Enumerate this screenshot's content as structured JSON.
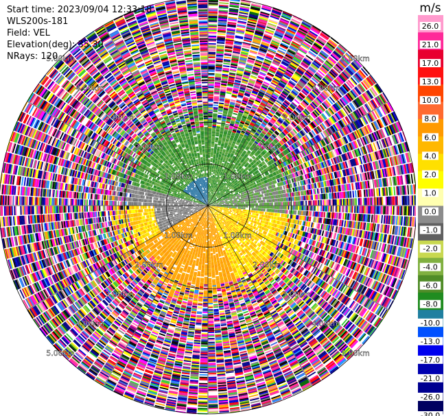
{
  "header": {
    "start_time": "Start time: 2023/09/04 12:33:18",
    "instrument": "WLS200s-181",
    "field": "Field: VEL",
    "elevation": "Elevation(deg): 35.30",
    "nrays": "NRays: 120"
  },
  "ppi": {
    "range_rings": [
      {
        "km": 1,
        "label": "1.00km"
      },
      {
        "km": 2,
        "label": "2.00km"
      },
      {
        "km": 3,
        "label": "3.00km"
      },
      {
        "km": 4,
        "label": "4.00km"
      },
      {
        "km": 5,
        "label": "5.00km"
      }
    ],
    "max_range_km": 5.0,
    "spokes_deg": [
      0,
      30,
      60,
      90,
      120,
      150,
      180,
      210,
      240,
      270,
      300,
      330
    ]
  },
  "colorbar": {
    "unit": "m/s",
    "ticks": [
      "26.0",
      "21.0",
      "17.0",
      "13.0",
      "10.0",
      "8.0",
      "6.0",
      "4.0",
      "2.0",
      "1.0",
      "0.0",
      "-1.0",
      "-2.0",
      "-4.0",
      "-6.0",
      "-8.0",
      "-10.0",
      "-13.0",
      "-17.0",
      "-21.0",
      "-26.0",
      "-30.0"
    ],
    "colors": [
      "#ff9acd",
      "#ff2a99",
      "#e8002f",
      "#ff1010",
      "#ff4500",
      "#ff6a30",
      "#ff9a00",
      "#ffb800",
      "#ffe000",
      "#ffff00",
      "#ffffb0",
      "#8c8c8c",
      "#606060",
      "#c8d850",
      "#80b040",
      "#508c28",
      "#208c20",
      "#2080a0",
      "#0050ff",
      "#0000ee",
      "#0000b0",
      "#000090",
      "#000060"
    ]
  }
}
